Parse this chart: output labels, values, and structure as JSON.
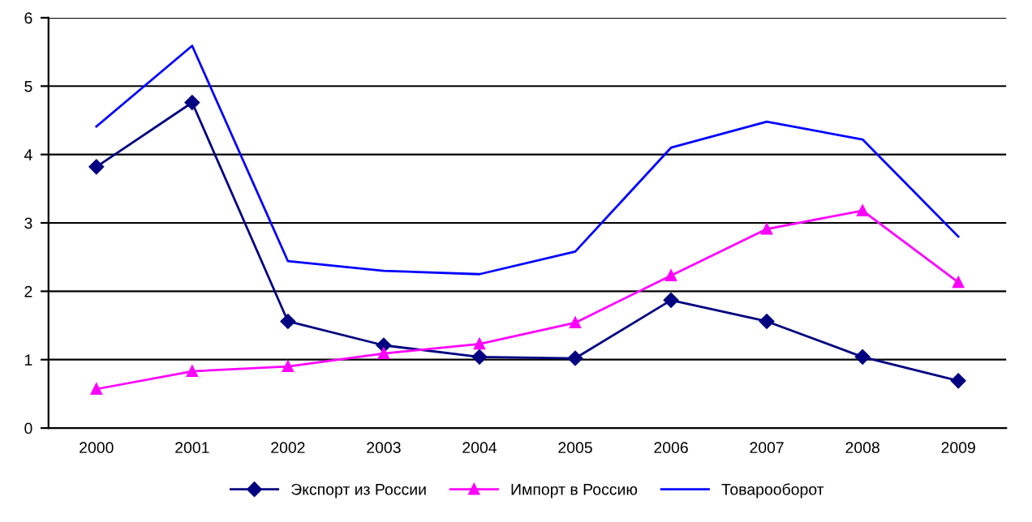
{
  "chart_data": {
    "type": "line",
    "categories": [
      "2000",
      "2001",
      "2002",
      "2003",
      "2004",
      "2005",
      "2006",
      "2007",
      "2008",
      "2009"
    ],
    "series": [
      {
        "name": "Экспорт из России",
        "color": "#000080",
        "marker": "diamond",
        "values": [
          3.82,
          4.76,
          1.56,
          1.21,
          1.04,
          1.02,
          1.87,
          1.56,
          1.04,
          0.69
        ]
      },
      {
        "name": "Импорт в Россию",
        "color": "#ff00ff",
        "marker": "triangle",
        "values": [
          0.57,
          0.83,
          0.9,
          1.09,
          1.23,
          1.54,
          2.23,
          2.91,
          3.18,
          2.13
        ]
      },
      {
        "name": "Товарооборот",
        "color": "#0000ff",
        "marker": "none",
        "values": [
          4.41,
          5.59,
          2.44,
          2.3,
          2.25,
          2.58,
          4.1,
          4.48,
          4.22,
          2.8
        ]
      }
    ],
    "ylim": [
      0,
      6
    ],
    "yticks": [
      0,
      1,
      2,
      3,
      4,
      5,
      6
    ],
    "grid": "y",
    "legend": "bottom",
    "line_style": "solid"
  }
}
